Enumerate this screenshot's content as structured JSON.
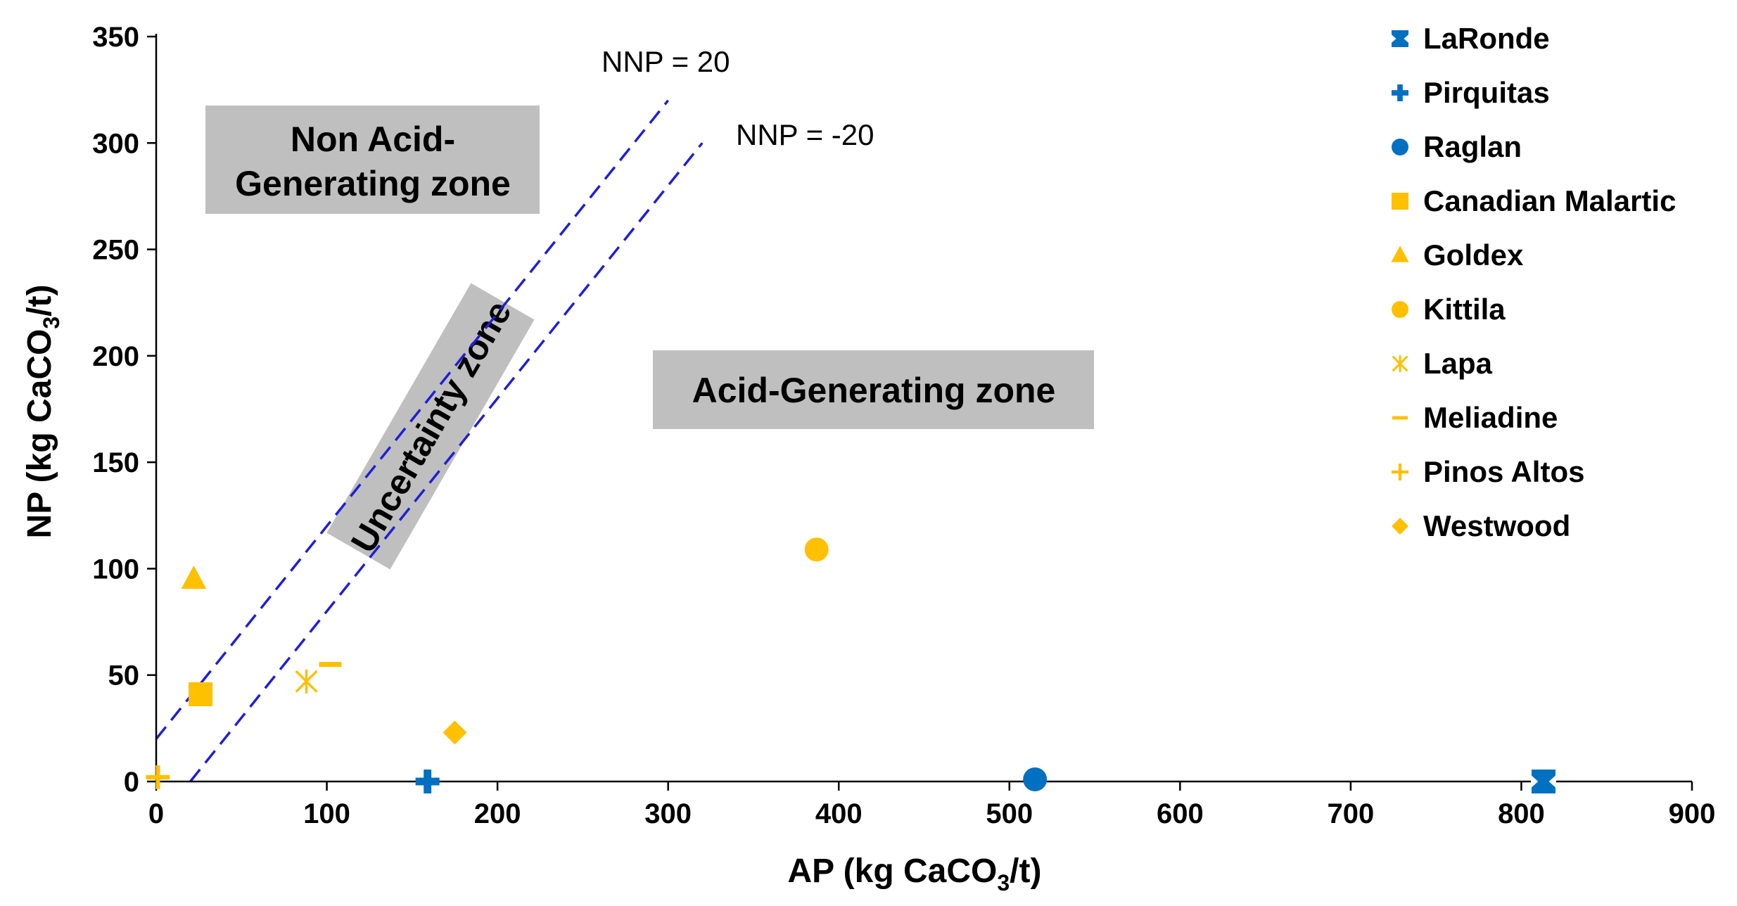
{
  "chart_data": {
    "type": "scatter",
    "xlabel": {
      "prefix": "AP (kg CaCO",
      "sub": "3",
      "suffix": "/t)"
    },
    "ylabel": {
      "prefix": "NP (kg CaCO",
      "sub": "3",
      "suffix": "/t)"
    },
    "xlim": [
      0,
      900
    ],
    "ylim": [
      0,
      350
    ],
    "xticks": [
      "0",
      "100",
      "200",
      "300",
      "400",
      "500",
      "600",
      "700",
      "800",
      "900"
    ],
    "yticks": [
      "0",
      "50",
      "100",
      "150",
      "200",
      "250",
      "300",
      "350"
    ],
    "grid": false,
    "legend_position": "right",
    "reference_lines": [
      {
        "name": "NNP = 20",
        "nnp": 20,
        "x_range": [
          0,
          300
        ],
        "color": "#1f1fd6",
        "style": "dashed"
      },
      {
        "name": "NNP = -20",
        "nnp": -20,
        "x_range": [
          20,
          320
        ],
        "color": "#1f1fd6",
        "style": "dashed"
      }
    ],
    "zones": [
      {
        "name": "non-acid",
        "lines": [
          "Non Acid-",
          "Generating zone"
        ]
      },
      {
        "name": "uncertainty",
        "lines": [
          "Uncertainty zone"
        ]
      },
      {
        "name": "acid",
        "lines": [
          "Acid-Generating zone"
        ]
      }
    ],
    "series": [
      {
        "name": "LaRonde",
        "marker": "square-notch",
        "color": "#0070c0",
        "points": [
          [
            813,
            0
          ]
        ]
      },
      {
        "name": "Pirquitas",
        "marker": "thick-plus",
        "color": "#0070c0",
        "points": [
          [
            159,
            0
          ]
        ]
      },
      {
        "name": "Raglan",
        "marker": "circle",
        "color": "#0070c0",
        "points": [
          [
            515,
            1
          ]
        ]
      },
      {
        "name": "Canadian Malartic",
        "marker": "square",
        "color": "#ffc000",
        "points": [
          [
            26,
            41
          ]
        ]
      },
      {
        "name": "Goldex",
        "marker": "triangle",
        "color": "#ffc000",
        "points": [
          [
            22,
            95
          ]
        ]
      },
      {
        "name": "Kittila",
        "marker": "circle",
        "color": "#ffc000",
        "points": [
          [
            387,
            109
          ]
        ]
      },
      {
        "name": "Lapa",
        "marker": "asterisk",
        "color": "#ffc000",
        "points": [
          [
            88,
            47
          ]
        ]
      },
      {
        "name": "Meliadine",
        "marker": "dash",
        "color": "#ffc000",
        "points": [
          [
            102,
            55
          ]
        ]
      },
      {
        "name": "Pinos Altos",
        "marker": "plus",
        "color": "#ffc000",
        "points": [
          [
            1,
            2
          ]
        ]
      },
      {
        "name": "Westwood",
        "marker": "diamond",
        "color": "#ffc000",
        "points": [
          [
            175,
            23
          ]
        ]
      }
    ]
  }
}
